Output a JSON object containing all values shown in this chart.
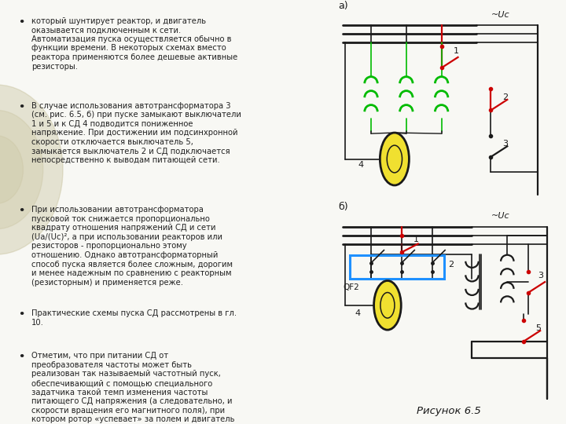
{
  "bg_color": "#f5f5f0",
  "left_panel_color": "#ffffff",
  "right_panel_color": "#f0f0ec",
  "bullet_items": [
    "который шунтирует реактор, и двигатель\nоказывается подключенным к сети.\nАвтоматизация пуска осуществляется обычно в\nфункции времени. В некоторых схемах вместо\nреактора применяются более дешевые активные\nрезисторы.",
    "В случае использования автотрансформатора 3\n(см. рис. 6.5, б) при пуске замыкают выключатели\n1 и 5 и к СД 4 подводится пониженное\nнапряжение. При достижении им подсинхронной\nскорости отключается выключатель 5,\nзамыкается выключатель 2 и СД подключается\nнепосредственно к выводам питающей сети.",
    "При использовании автотрансформатора\nпусковой ток снижается пропорционально\nквадрату отношения напряжений СД и сети\n(Uа/(Uс)², а при использовании реакторов или\nрезисторов - пропорционально этому\nотношению. Однако автотрансформаторный\nспособ пуска является более сложным, дорогим\nи менее надежным по сравнению с реакторным\n(резисторным) и применяется реже.",
    "Практические схемы пуска СД рассмотрены в гл.\n10.",
    "Отметим, что при питании СД от\nпреобразователя частоты может быть\nреализован так называемый частотный пуск,\nобеспечивающий с помощью специального\nзадатчика такой темп изменения частоты\nпитающего СД напряжения (а следовательно, и\nскорости вращения его магнитного поля), при\nкотором ротор «успевает» за полем и двигатель\nработает синхронно с источником питания уже с\nсамых малых своих скоростей. Для такого\nспособа пуска характерны к тому же\nменьшие потери энергии в двигателе при пуске."
  ],
  "figure_caption": "Рисунок 6.5",
  "diagram_a_label": "а)",
  "diagram_b_label": "б)",
  "voltage_label": "~Uс",
  "qf2_label": "QF2",
  "green_color": "#00bb00",
  "red_color": "#cc0000",
  "blue_color": "#1e90ff",
  "line_color": "#1a1a1a",
  "bg_left": "#f8f8f4",
  "bg_right": "#e8e8e0",
  "bullet_color": "#222222",
  "circle_color_a": "#f0e030",
  "circle_color_b": "#f0e030",
  "font_size_text": 7.2,
  "font_size_label": 9.0,
  "font_size_caption": 9.5
}
